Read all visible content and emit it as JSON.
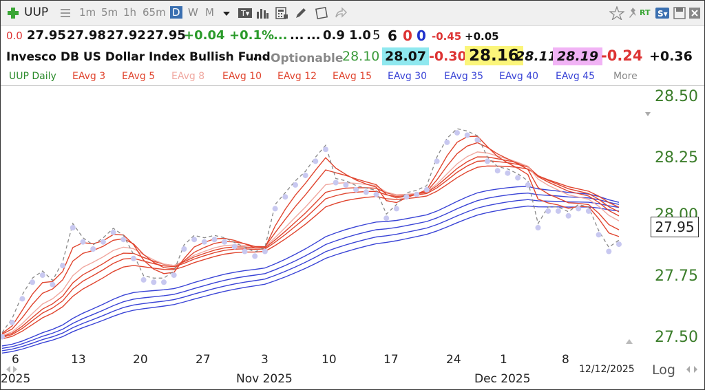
{
  "toolbar": {
    "symbol": "UUP",
    "timeframes": [
      "1m",
      "5m",
      "1h",
      "65m",
      "D",
      "W",
      "M"
    ],
    "selected": "D"
  },
  "quote_row1": {
    "v0": "0.0",
    "open": "27.95",
    "high": "27.98",
    "low": "27.92",
    "close": "27.95",
    "chg": "+0.04",
    "pct": "+0.1%",
    "dots": "...",
    "dots2": "...",
    "dots3": "...",
    "a": "0.9",
    "b": "1.0",
    "c": "5",
    "d": "6",
    "e": "0",
    "f": "0",
    "g": "-0.45",
    "h": "+0.05"
  },
  "quote_row2": {
    "name": "Invesco DB US Dollar Index Bullish Fund",
    "dots": "...",
    "optionable": "Optionable",
    "last": "28.10",
    "bid": "28.07",
    "bidchg": "-0.30",
    "ask": "28.16",
    "mid": "28.11",
    "val": "28.19",
    "chg": "-0.24",
    "chg2": "+0.36"
  },
  "legend": {
    "main": "UUP Daily",
    "items": [
      "EAvg 3",
      "EAvg 5",
      "EAvg 8",
      "EAvg 10",
      "EAvg 12",
      "EAvg 15",
      "EAvg 30",
      "EAvg 35",
      "EAvg 40",
      "EAvg 45"
    ],
    "more": "More"
  },
  "chart_data": {
    "type": "line",
    "title": "UUP Daily",
    "ylim": [
      27.44,
      28.6
    ],
    "yticks": [
      "28.50",
      "28.25",
      "28.00",
      "27.75",
      "27.50"
    ],
    "xticks": [
      "6",
      "13",
      "20",
      "27",
      "3",
      "10",
      "17",
      "24",
      "1",
      "8"
    ],
    "months": [
      "2025",
      "Nov 2025",
      "Dec 2025"
    ],
    "date_label": "12/12/2025",
    "log_label": "Log",
    "last_price": "27.95",
    "price_closes": [
      27.56,
      27.62,
      27.72,
      27.79,
      27.82,
      27.78,
      27.86,
      28.02,
      27.96,
      27.93,
      27.96,
      28.0,
      27.97,
      27.89,
      27.8,
      27.79,
      27.79,
      27.82,
      27.93,
      27.97,
      27.96,
      27.97,
      27.96,
      27.94,
      27.92,
      27.9,
      27.92,
      28.1,
      28.15,
      28.2,
      28.24,
      28.3,
      28.35,
      28.21,
      28.2,
      28.18,
      28.17,
      28.16,
      28.06,
      28.1,
      28.15,
      28.16,
      28.18,
      28.3,
      28.38,
      28.42,
      28.41,
      28.39,
      28.3,
      28.26,
      28.25,
      28.23,
      28.2,
      28.02,
      28.09,
      28.09,
      28.07,
      28.1,
      28.09,
      27.99,
      27.92,
      27.95
    ],
    "ema_periods": [
      3,
      5,
      8,
      10,
      12,
      15,
      30,
      35,
      40,
      45
    ],
    "ema_colors": [
      "#e0452f",
      "#e0452f",
      "#f0a8a0",
      "#e0452f",
      "#e0452f",
      "#e0452f",
      "#3a44d6",
      "#3a44d6",
      "#3a44d6",
      "#3a44d6"
    ],
    "fast_legend_colors": [
      "#e0452f",
      "#e0452f",
      "#f0a8a0",
      "#e0452f",
      "#e0452f",
      "#e0452f"
    ],
    "slow_legend_color": "#3a44d6",
    "price_color": "#888888",
    "dot_color": "#c8c8f0",
    "tick_color": "#3b7d2a"
  }
}
